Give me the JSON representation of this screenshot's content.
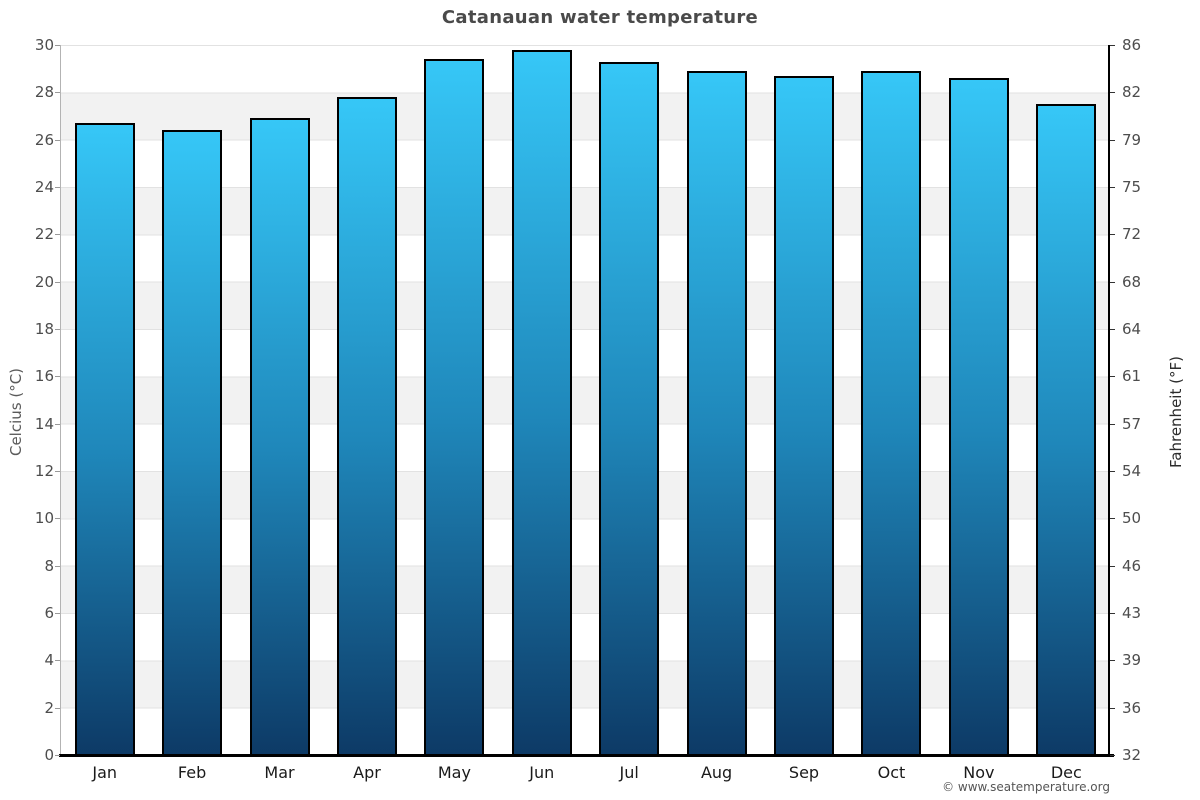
{
  "chart_data": {
    "type": "bar",
    "title": "Catanauan water temperature",
    "categories": [
      "Jan",
      "Feb",
      "Mar",
      "Apr",
      "May",
      "Jun",
      "Jul",
      "Aug",
      "Sep",
      "Oct",
      "Nov",
      "Dec"
    ],
    "values_celsius": [
      26.7,
      26.4,
      26.9,
      27.8,
      29.4,
      29.8,
      29.3,
      28.9,
      28.7,
      28.9,
      28.6,
      27.5
    ],
    "unit": "°C",
    "ylabel_left": "Celcius (°C)",
    "ylabel_right": "Fahrenheit (°F)",
    "yticks_celsius": [
      30,
      28,
      26,
      24,
      22,
      20,
      18,
      16,
      14,
      12,
      10,
      8,
      6,
      4,
      2,
      0
    ],
    "yticks_fahrenheit": [
      86,
      82,
      79,
      75,
      72,
      68,
      64,
      61,
      57,
      54,
      50,
      46,
      43,
      39,
      36,
      32
    ],
    "ylim": [
      0,
      30
    ],
    "grid": "alternating horizontal bands every 2°C, white and light gray",
    "legend": "none",
    "colors": {
      "bar_gradient_top": "#36c7f7",
      "bar_gradient_mid": "#1f87ba",
      "bar_gradient_bottom": "#0d3a66",
      "bar_border": "#000000",
      "band_gray": "#f2f2f2",
      "gridline": "#e2e2e2"
    }
  },
  "footer": {
    "credit": "© www.seatemperature.org"
  }
}
